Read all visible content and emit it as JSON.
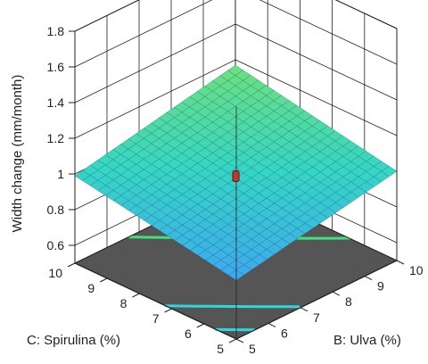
{
  "chart_data": {
    "type": "surface",
    "title": "",
    "zlabel": "Width change (mm/month)",
    "xlabel": "B: Ulva (%)",
    "ylabel": "C: Spirulina (%)",
    "x_ticks": [
      "5",
      "6",
      "7",
      "8",
      "9",
      "10"
    ],
    "y_ticks": [
      "5",
      "6",
      "7",
      "8",
      "9",
      "10"
    ],
    "z_ticks": [
      "0.6",
      "0.8",
      "1",
      "1.2",
      "1.4",
      "1.6",
      "1.8"
    ],
    "xlim": [
      5,
      10
    ],
    "ylim": [
      5,
      10
    ],
    "zlim": [
      0.5,
      1.8
    ],
    "grid": true,
    "surface_mesh": 21,
    "surface_corners": [
      {
        "x": 5,
        "y": 5,
        "z": 0.83
      },
      {
        "x": 10,
        "y": 5,
        "z": 1.0
      },
      {
        "x": 10,
        "y": 10,
        "z": 1.17
      },
      {
        "x": 5,
        "y": 10,
        "z": 0.99
      }
    ],
    "design_point": {
      "x": 7.5,
      "y": 7.5,
      "z": 0.98
    },
    "contour_levels": [
      0.85,
      0.9,
      1.05,
      1.1
    ],
    "colors": {
      "surface_low": "#3fa7f0",
      "surface_mid": "#34d6c4",
      "surface_high": "#6ee07a",
      "mesh": "#1f6e8c",
      "floor": "#555555",
      "contour": "#2dd6e0",
      "contour_high": "#3ee27a",
      "design_point": "#c0392b",
      "grid": "#222222"
    }
  }
}
